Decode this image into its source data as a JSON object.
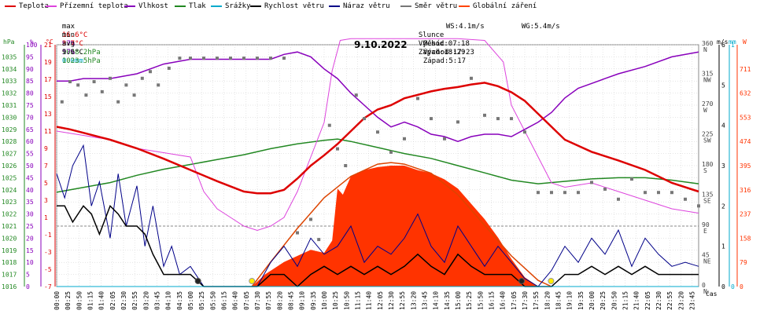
{
  "legend": [
    {
      "label": "Teplota",
      "color": "#dd0000"
    },
    {
      "label": "Přízemní teplota",
      "color": "#dd44dd"
    },
    {
      "label": "Vlhkost",
      "color": "#8800bb"
    },
    {
      "label": "Tlak",
      "color": "#228822"
    },
    {
      "label": "Srážky",
      "color": "#00aacc"
    },
    {
      "label": "Rychlost větru",
      "color": "#000000"
    },
    {
      "label": "Náraz větru",
      "color": "#000088"
    },
    {
      "label": "Směr větru",
      "color": "#777777"
    },
    {
      "label": "Globální záření",
      "color": "#ff4400"
    }
  ],
  "stats": {
    "max": {
      "label": "max",
      "temp": "16.6°C",
      "hum": "97%",
      "press": "1028.2hPa",
      "rain": "0.0mm"
    },
    "min": {
      "label": "min",
      "temp": "3.7°C",
      "hum": "57%",
      "press": "1023.5hPa"
    },
    "avg": {
      "label": "avg",
      "temp": "9.6°C"
    }
  },
  "info": {
    "ws": "WS:4.1m/s",
    "wg": "WG:5.4m/s",
    "sun_label": "Slunce",
    "sunrise": "Východ:07:18",
    "sunset": "Západ:18:29",
    "moon_label": "Měsíc",
    "moonrise": "Východ:17:23",
    "moonset": "Západ:5:17"
  },
  "colors": {
    "temp": "#dd0000",
    "ground": "#dd44dd",
    "hum": "#8800bb",
    "press": "#228822",
    "rain": "#00aacc",
    "wind": "#000000",
    "gust": "#000088",
    "dir": "#777777",
    "solar": "#ff3300",
    "grid": "#cccccc"
  },
  "chart_data": {
    "type": "line",
    "title": "9.10.2022",
    "xlabel": "čas",
    "x_ticks": [
      "00:00",
      "00:25",
      "00:50",
      "01:15",
      "01:40",
      "02:05",
      "02:30",
      "02:55",
      "03:20",
      "03:45",
      "04:10",
      "04:35",
      "05:00",
      "05:25",
      "05:50",
      "06:15",
      "06:40",
      "07:05",
      "07:30",
      "07:55",
      "08:20",
      "08:45",
      "09:10",
      "09:35",
      "10:00",
      "10:25",
      "10:50",
      "11:15",
      "11:40",
      "12:05",
      "12:30",
      "12:55",
      "13:20",
      "13:45",
      "14:10",
      "14:35",
      "15:00",
      "15:25",
      "15:50",
      "16:15",
      "16:40",
      "17:05",
      "17:30",
      "17:55",
      "18:20",
      "18:45",
      "19:10",
      "19:35",
      "20:00",
      "20:25",
      "20:50",
      "21:15",
      "21:40",
      "22:05",
      "22:30",
      "22:55",
      "23:20",
      "23:45"
    ],
    "axes": {
      "hPa": {
        "label": "hPa",
        "range": [
          1016,
          1036
        ],
        "ticks": [
          1016,
          1017,
          1018,
          1019,
          1020,
          1021,
          1022,
          1023,
          1024,
          1025,
          1026,
          1027,
          1028,
          1029,
          1030,
          1031,
          1032,
          1033,
          1034,
          1035
        ]
      },
      "percent": {
        "label": "%",
        "range": [
          0,
          100
        ],
        "ticks": [
          0,
          5,
          10,
          15,
          20,
          25,
          30,
          35,
          40,
          45,
          50,
          55,
          60,
          65,
          70,
          75,
          80,
          85,
          90,
          95,
          100
        ]
      },
      "celsius": {
        "label": "°C",
        "range": [
          -7,
          21
        ],
        "ticks": [
          -7,
          -5,
          -3,
          -1,
          1,
          3,
          5,
          7,
          9,
          11,
          13,
          15,
          17,
          19,
          21
        ]
      },
      "direction": {
        "range": [
          0,
          360
        ],
        "ticks": [
          {
            "v": 0,
            "num": "0",
            "lbl": "N"
          },
          {
            "v": 45,
            "num": "45",
            "lbl": "NE"
          },
          {
            "v": 90,
            "num": "90",
            "lbl": "E"
          },
          {
            "v": 135,
            "num": "135",
            "lbl": "SE"
          },
          {
            "v": 180,
            "num": "180",
            "lbl": "S"
          },
          {
            "v": 225,
            "num": "225",
            "lbl": "SW"
          },
          {
            "v": 270,
            "num": "270",
            "lbl": "W"
          },
          {
            "v": 315,
            "num": "315",
            "lbl": "NW"
          },
          {
            "v": 360,
            "num": "360",
            "lbl": "N"
          }
        ]
      },
      "ms": {
        "label": "m/s",
        "range": [
          0,
          6
        ],
        "ticks": [
          0,
          1,
          2,
          3,
          4,
          5,
          6
        ]
      },
      "mm": {
        "label": "mm",
        "range": [
          0,
          1
        ],
        "ticks": [
          0,
          1
        ]
      },
      "W": {
        "label": "W",
        "range": [
          0,
          790
        ],
        "ticks": [
          0,
          79,
          158,
          237,
          316,
          395,
          474,
          553,
          632,
          711
        ]
      }
    },
    "series": [
      {
        "name": "Teplota",
        "axis": "celsius",
        "x": [
          0,
          0.5,
          1,
          2,
          3,
          4,
          5,
          6,
          6.5,
          7,
          7.5,
          8,
          8.5,
          9,
          9.5,
          10,
          10.5,
          11,
          11.5,
          12,
          12.5,
          13,
          13.5,
          14,
          14.5,
          15,
          15.5,
          16,
          16.5,
          17,
          17.5,
          18,
          18.5,
          19,
          20,
          21,
          22,
          23,
          24
        ],
        "y": [
          11.5,
          11.2,
          10.8,
          10,
          9,
          7.8,
          6.5,
          5.2,
          4.6,
          4,
          3.8,
          3.8,
          4.2,
          5.5,
          7,
          8.2,
          9.5,
          11,
          12.5,
          13.5,
          14,
          14.8,
          15.2,
          15.6,
          15.9,
          16.1,
          16.4,
          16.6,
          16.2,
          15.5,
          14.5,
          13,
          11.5,
          10,
          8.6,
          7.6,
          6.5,
          5,
          4
        ]
      },
      {
        "name": "Přízemní teplota",
        "axis": "celsius",
        "x": [
          0,
          1,
          2,
          3,
          4,
          5,
          5.5,
          6,
          6.5,
          7,
          7.5,
          8,
          8.5,
          9,
          9.5,
          10,
          10.3,
          10.6,
          11,
          12,
          13,
          14,
          15,
          16,
          16.7,
          17,
          17.5,
          18,
          18.5,
          19,
          20,
          21,
          22,
          23,
          24
        ],
        "y": [
          11,
          10.5,
          10,
          9,
          8.5,
          8,
          4,
          2,
          1,
          0,
          -0.5,
          0,
          1,
          4,
          8,
          12,
          18,
          21.5,
          21.7,
          21.7,
          21.7,
          21.7,
          21.7,
          21.5,
          19,
          14,
          11,
          8,
          5,
          4.5,
          5,
          4,
          3,
          2,
          1.5
        ]
      },
      {
        "name": "Vlhkost",
        "axis": "percent",
        "x": [
          0,
          0.5,
          1,
          2,
          3,
          4,
          5,
          6,
          7,
          8,
          8.5,
          9,
          9.5,
          10,
          10.5,
          11,
          11.5,
          12,
          12.5,
          13,
          13.5,
          14,
          14.5,
          15,
          15.5,
          16,
          16.5,
          17,
          17.5,
          18,
          18.5,
          19,
          19.5,
          20,
          20.5,
          21,
          22,
          23,
          24
        ],
        "y": [
          85,
          85,
          86,
          86,
          88,
          92,
          94,
          94,
          94,
          94,
          96,
          97,
          95,
          90,
          86,
          80,
          75,
          70,
          66,
          68,
          66,
          63,
          62,
          60,
          62,
          63,
          63,
          62,
          65,
          68,
          72,
          78,
          82,
          84,
          86,
          88,
          91,
          95,
          97
        ]
      },
      {
        "name": "Tlak",
        "axis": "hPa",
        "x": [
          0,
          1,
          2,
          3,
          4,
          5,
          6,
          7,
          8,
          9,
          10,
          10.5,
          11,
          12,
          13,
          14,
          15,
          16,
          17,
          18,
          19,
          20,
          21,
          22,
          23,
          24
        ],
        "y": [
          1023.8,
          1024.2,
          1024.6,
          1025.2,
          1025.7,
          1026.1,
          1026.5,
          1026.9,
          1027.4,
          1027.8,
          1028.1,
          1028.2,
          1028,
          1027.5,
          1027,
          1026.6,
          1026,
          1025.4,
          1024.8,
          1024.5,
          1024.7,
          1024.9,
          1025,
          1025,
          1024.8,
          1024.5
        ]
      },
      {
        "name": "Srážky",
        "axis": "mm",
        "x": [
          0,
          24
        ],
        "y": [
          0,
          0
        ]
      },
      {
        "name": "Rychlost větru",
        "axis": "ms",
        "x": [
          0,
          0.3,
          0.6,
          1,
          1.3,
          1.6,
          2,
          2.3,
          2.6,
          3,
          3.3,
          3.6,
          4,
          4.3,
          4.6,
          5,
          5.5,
          6,
          6.5,
          7,
          7.5,
          8,
          8.5,
          9,
          9.5,
          10,
          10.5,
          11,
          11.5,
          12,
          12.5,
          13,
          13.5,
          14,
          14.5,
          15,
          15.5,
          16,
          16.5,
          17,
          17.5,
          18,
          18.5,
          19,
          19.5,
          20,
          20.5,
          21,
          21.5,
          22,
          22.5,
          23,
          23.5,
          24
        ],
        "y": [
          2,
          2,
          1.6,
          2,
          1.8,
          1.3,
          2,
          1.8,
          1.5,
          1.5,
          1.3,
          0.8,
          0.3,
          0.3,
          0.3,
          0.3,
          0,
          0,
          0,
          0,
          0,
          0.3,
          0.3,
          0,
          0.3,
          0.5,
          0.3,
          0.5,
          0.3,
          0.5,
          0.3,
          0.5,
          0.8,
          0.5,
          0.3,
          0.8,
          0.5,
          0.3,
          0.3,
          0.3,
          0,
          0,
          0,
          0.3,
          0.3,
          0.5,
          0.3,
          0.5,
          0.3,
          0.5,
          0.3,
          0.3,
          0.3,
          0.3
        ]
      },
      {
        "name": "Náraz větru",
        "axis": "ms",
        "x": [
          0,
          0.3,
          0.6,
          1,
          1.3,
          1.6,
          2,
          2.3,
          2.6,
          3,
          3.3,
          3.6,
          4,
          4.3,
          4.6,
          5,
          5.5,
          6,
          6.5,
          7,
          7.5,
          8,
          8.5,
          9,
          9.5,
          10,
          10.5,
          11,
          11.5,
          12,
          12.5,
          13,
          13.5,
          14,
          14.5,
          15,
          15.5,
          16,
          16.5,
          17,
          17.5,
          18,
          18.5,
          19,
          19.5,
          20,
          20.5,
          21,
          21.5,
          22,
          22.5,
          23,
          23.5,
          24
        ],
        "y": [
          2.8,
          2.2,
          3,
          3.5,
          2,
          2.6,
          1.2,
          2.8,
          1.5,
          2.5,
          1,
          2,
          0.5,
          1,
          0.3,
          0.5,
          0,
          0,
          0,
          0,
          0,
          0.6,
          1,
          0.5,
          1.2,
          0.8,
          1,
          1.5,
          0.6,
          1,
          0.8,
          1.2,
          1.8,
          1,
          0.6,
          1.5,
          1,
          0.5,
          1,
          0.6,
          0.2,
          0,
          0.4,
          1,
          0.6,
          1.2,
          0.8,
          1.4,
          0.5,
          1.2,
          0.8,
          0.5,
          0.6,
          0.5
        ]
      },
      {
        "name": "Směr větru",
        "axis": "direction",
        "type": "scatter",
        "x": [
          0.2,
          0.5,
          0.8,
          1.1,
          1.4,
          1.7,
          2,
          2.3,
          2.6,
          2.9,
          3.2,
          3.5,
          3.8,
          4.2,
          4.6,
          5,
          5.5,
          6,
          6.5,
          7,
          7.5,
          8,
          8.5,
          9,
          9.5,
          9.8,
          10.2,
          10.5,
          10.8,
          11.2,
          11.5,
          12,
          12.5,
          13,
          13.5,
          14,
          14.5,
          15,
          15.5,
          16,
          16.5,
          17,
          17.5,
          18,
          18.5,
          19,
          19.5,
          20,
          20.5,
          21,
          21.5,
          22,
          22.5,
          23,
          23.5,
          24
        ],
        "y": [
          275,
          305,
          300,
          285,
          305,
          290,
          310,
          275,
          300,
          285,
          310,
          320,
          300,
          325,
          340,
          340,
          340,
          340,
          340,
          340,
          340,
          340,
          340,
          80,
          100,
          70,
          240,
          205,
          180,
          285,
          250,
          230,
          200,
          220,
          280,
          250,
          220,
          245,
          310,
          255,
          250,
          250,
          230,
          140,
          140,
          140,
          140,
          155,
          145,
          130,
          160,
          140,
          140,
          140,
          130,
          120
        ]
      },
      {
        "name": "Globální záření",
        "axis": "W",
        "type": "area",
        "x": [
          0,
          7.3,
          7.8,
          8.5,
          9,
          9.5,
          10,
          10.3,
          10.5,
          10.7,
          11,
          11.5,
          12,
          12.5,
          13,
          13.5,
          14,
          14.5,
          15,
          15.5,
          16,
          16.5,
          17,
          17.5,
          18,
          24
        ],
        "y": [
          0,
          0,
          40,
          80,
          100,
          120,
          110,
          150,
          320,
          300,
          360,
          380,
          390,
          395,
          395,
          380,
          370,
          350,
          320,
          270,
          220,
          160,
          90,
          30,
          0,
          0
        ]
      },
      {
        "name": "Teoretické záření",
        "axis": "W",
        "x": [
          7.3,
          8,
          9,
          10,
          11,
          12,
          12.5,
          13,
          14,
          15,
          16,
          17,
          18,
          18.5
        ],
        "y": [
          0,
          80,
          190,
          290,
          360,
          400,
          405,
          400,
          370,
          300,
          200,
          100,
          20,
          0
        ]
      }
    ],
    "markers": {
      "sun": {
        "rise": "07:18",
        "set": "18:29"
      },
      "moon": {
        "rise": "17:23",
        "set": "5:17"
      }
    }
  }
}
